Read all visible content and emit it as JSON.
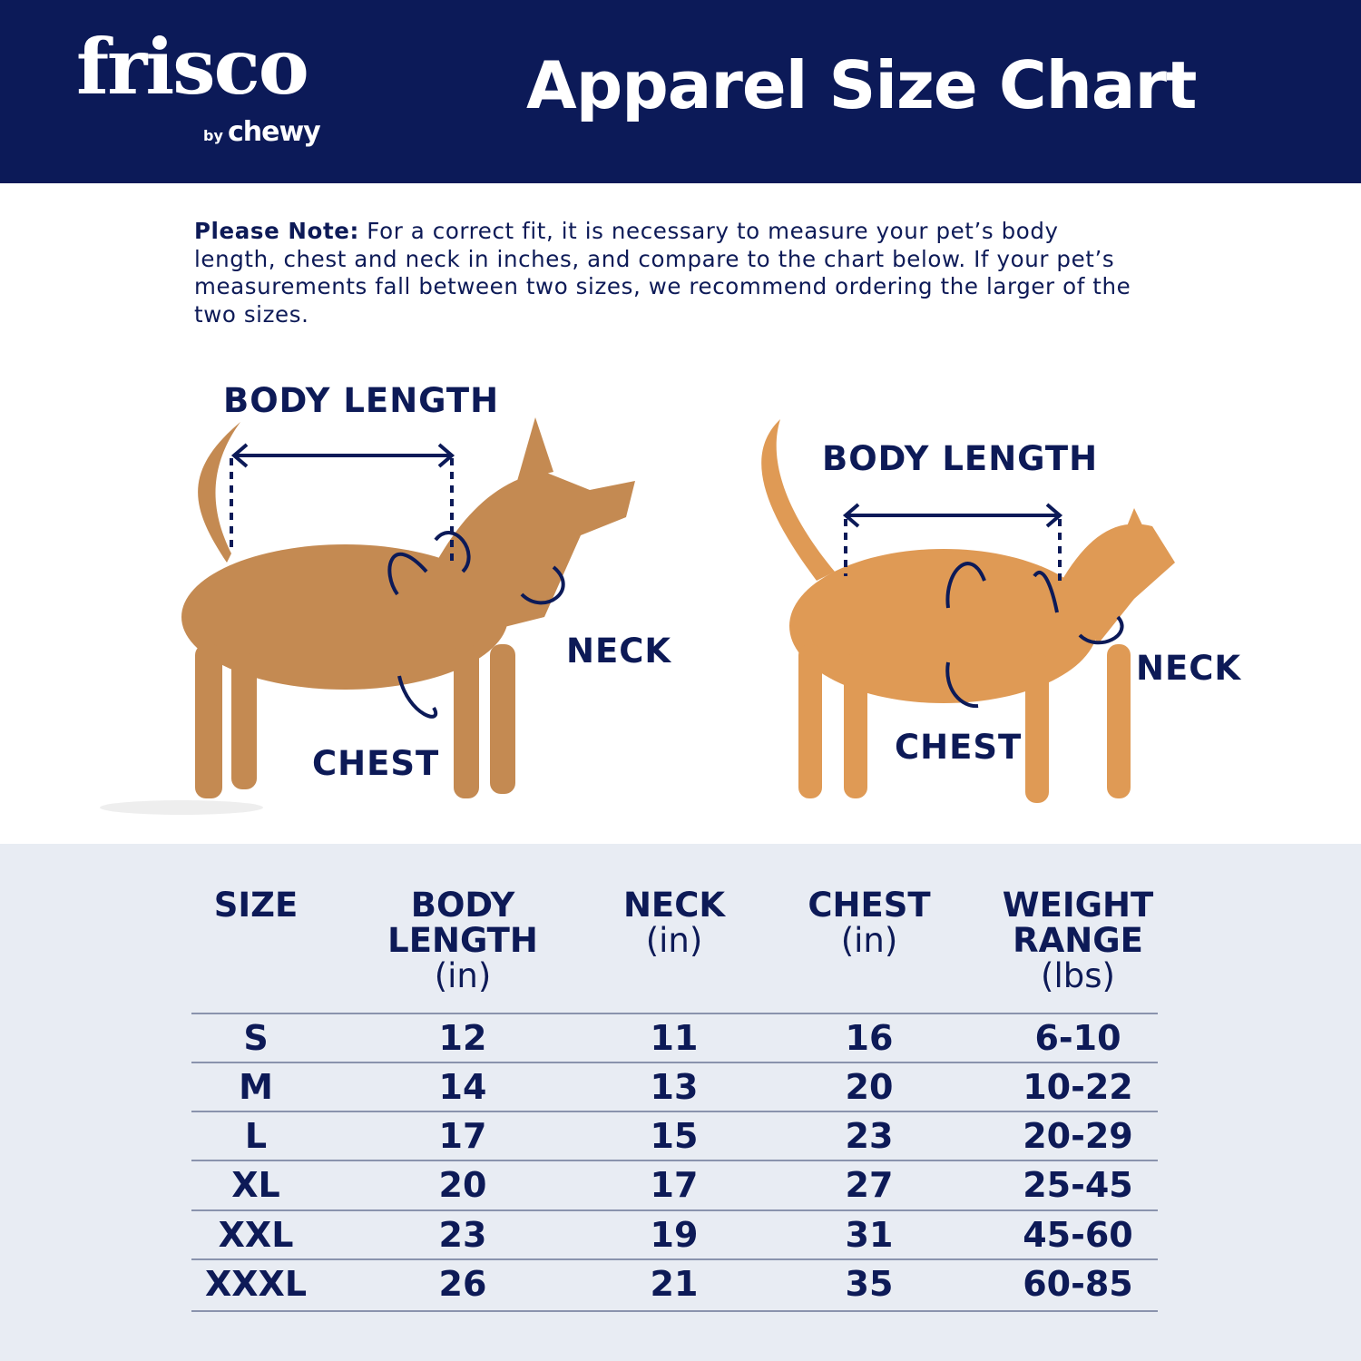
{
  "header": {
    "logo": {
      "brand": "frisco",
      "sub_by": "by",
      "sub_brand": "chewy"
    },
    "title": "Apparel Size Chart"
  },
  "note": {
    "label": "Please Note:",
    "text": "For a correct fit, it is necessary to measure your pet’s body length, chest and neck in inches, and compare to the chart below. If your pet’s measurements fall between two sizes, we recommend ordering the larger of the two sizes."
  },
  "dog": {
    "body_length": "BODY LENGTH",
    "neck": "NECK",
    "chest": "CHEST"
  },
  "cat": {
    "body_length": "BODY LENGTH",
    "neck": "NECK",
    "chest": "CHEST"
  },
  "colors": {
    "navy": "#0c1a58",
    "table_bg": "#e8ecf3",
    "dog_fur": "#c48a52",
    "cat_fur": "#df9a55"
  },
  "table": {
    "columns": [
      {
        "label": "SIZE",
        "unit": ""
      },
      {
        "label": "BODY LENGTH",
        "unit": "(in)"
      },
      {
        "label": "NECK",
        "unit": "(in)"
      },
      {
        "label": "CHEST",
        "unit": "(in)"
      },
      {
        "label": "WEIGHT RANGE",
        "unit": "(lbs)"
      }
    ],
    "rows": [
      [
        "S",
        "12",
        "11",
        "16",
        "6-10"
      ],
      [
        "M",
        "14",
        "13",
        "20",
        "10-22"
      ],
      [
        "L",
        "17",
        "15",
        "23",
        "20-29"
      ],
      [
        "XL",
        "20",
        "17",
        "27",
        "25-45"
      ],
      [
        "XXL",
        "23",
        "19",
        "31",
        "45-60"
      ],
      [
        "XXXL",
        "26",
        "21",
        "35",
        "60-85"
      ]
    ]
  }
}
